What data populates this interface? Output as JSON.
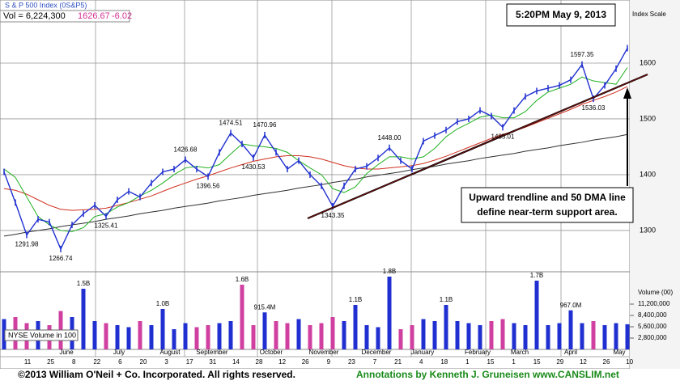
{
  "chart_data": {
    "type": "stock",
    "title": "S & P 500 Index (0S&P5)",
    "volume_text": "Vol = 6,224,300",
    "last_price": "1626.67",
    "change": "-6.02",
    "timestamp": "5:20PM May 9, 2013",
    "axis_label": "Index Scale",
    "volume_axis_label": "Volume (00)",
    "volume_legend": "NYSE Volume in 100",
    "callout": [
      "Upward trendline and 50 DMA line",
      "define near-term support area."
    ],
    "footer_left": "©2013 William O'Neil + Co. Incorporated. All rights reserved.",
    "footer_right": "Annotations by Kenneth J. Gruneisen www.CANSLIM.net",
    "date_ticks": [
      "11",
      "25",
      "8",
      "22",
      "6",
      "20",
      "3",
      "17",
      "31",
      "14",
      "28",
      "12",
      "26",
      "9",
      "23",
      "7",
      "21",
      "4",
      "18",
      "1",
      "15",
      "1",
      "15",
      "29",
      "12",
      "26",
      "10"
    ],
    "months": [
      "June",
      "July",
      "August",
      "September",
      "October",
      "November",
      "December",
      "January",
      "February",
      "March",
      "April",
      "May"
    ],
    "ylim": [
      1226,
      1713
    ],
    "yticks": [
      1300,
      1400,
      1500,
      1600
    ],
    "y2lim": [
      0,
      19200000
    ],
    "y2ticks": [
      {
        "value": 2800000,
        "label": "2,800,000"
      },
      {
        "value": 5600000,
        "label": "5,600,000"
      },
      {
        "value": 8400000,
        "label": "8,400,000"
      },
      {
        "value": 11200000,
        "label": "11,200,000"
      }
    ],
    "up_color": "#2030d0",
    "down_color": "#d040a0",
    "series": [
      {
        "name": "S&P 500",
        "color": "#2030d0",
        "values": [
          1405,
          1350,
          1291.98,
          1320,
          1315,
          1266.74,
          1310,
          1330,
          1345,
          1325.41,
          1355,
          1370,
          1360,
          1385,
          1405,
          1410,
          1426.68,
          1410,
          1396.56,
          1440,
          1474.51,
          1455,
          1430.53,
          1470.96,
          1440,
          1410,
          1425,
          1400,
          1380,
          1343.35,
          1380,
          1410,
          1415,
          1430,
          1448,
          1425,
          1410,
          1460,
          1470,
          1480,
          1495,
          1500,
          1515,
          1505,
          1485.01,
          1515,
          1540,
          1550,
          1555,
          1560,
          1570,
          1597.35,
          1536.03,
          1560,
          1590,
          1626.67
        ],
        "value_labels": [
          null,
          null,
          "1291.98",
          null,
          null,
          "1266.74",
          null,
          null,
          null,
          "1325.41",
          null,
          null,
          null,
          null,
          null,
          null,
          "1426.68",
          null,
          "1396.56",
          null,
          "1474.51",
          null,
          "1430.53",
          "1470.96",
          null,
          null,
          null,
          null,
          null,
          "1343.35",
          null,
          null,
          null,
          null,
          "1448.00",
          null,
          null,
          null,
          null,
          null,
          null,
          null,
          null,
          null,
          "1485.01",
          null,
          null,
          null,
          null,
          null,
          null,
          "1597.35",
          "1536.03",
          null,
          null,
          null
        ]
      },
      {
        "name": "10-day",
        "color": "#20b020",
        "values": [
          1410,
          1395,
          1360,
          1325,
          1310,
          1300,
          1298,
          1305,
          1325,
          1330,
          1342,
          1350,
          1362,
          1372,
          1385,
          1400,
          1412,
          1415,
          1412,
          1418,
          1437,
          1455,
          1452,
          1450,
          1447,
          1440,
          1425,
          1412,
          1400,
          1375,
          1368,
          1378,
          1402,
          1418,
          1432,
          1432,
          1428,
          1432,
          1447,
          1468,
          1482,
          1492,
          1503,
          1507,
          1502,
          1502,
          1513,
          1533,
          1548,
          1555,
          1562,
          1575,
          1568,
          1565,
          1562,
          1592
        ]
      },
      {
        "name": "50-day",
        "color": "#d03020",
        "values": [
          1375,
          1372,
          1365,
          1355,
          1345,
          1338,
          1336,
          1337,
          1338,
          1340,
          1345,
          1350,
          1356,
          1362,
          1370,
          1378,
          1385,
          1392,
          1398,
          1405,
          1412,
          1418,
          1424,
          1428,
          1432,
          1434,
          1434,
          1432,
          1428,
          1422,
          1416,
          1412,
          1410,
          1410,
          1412,
          1414,
          1416,
          1420,
          1426,
          1433,
          1441,
          1449,
          1457,
          1465,
          1472,
          1478,
          1485,
          1493,
          1501,
          1509,
          1517,
          1526,
          1533,
          1540,
          1548,
          1558
        ]
      },
      {
        "name": "200-day",
        "color": "#303030",
        "values": [
          1290,
          1293,
          1297,
          1300,
          1303,
          1307,
          1310,
          1313,
          1316,
          1320,
          1323,
          1326,
          1330,
          1333,
          1336,
          1340,
          1343,
          1346,
          1349,
          1353,
          1356,
          1359,
          1363,
          1366,
          1369,
          1372,
          1376,
          1379,
          1382,
          1386,
          1389,
          1392,
          1396,
          1399,
          1402,
          1405,
          1409,
          1412,
          1415,
          1419,
          1422,
          1425,
          1429,
          1432,
          1435,
          1438,
          1442,
          1445,
          1448,
          1452,
          1455,
          1458,
          1462,
          1465,
          1468,
          1472
        ]
      },
      {
        "name": "Volume",
        "axis": "y2",
        "values": [
          7500000,
          8000000,
          6500000,
          7000000,
          6000000,
          9500000,
          8000000,
          15000000,
          7000000,
          6500000,
          6000000,
          5500000,
          7000000,
          6000000,
          10000000,
          5000000,
          6500000,
          5500000,
          6000000,
          6500000,
          7000000,
          16000000,
          6000000,
          9154000,
          7000000,
          6500000,
          7500000,
          6000000,
          6500000,
          8000000,
          7000000,
          11000000,
          6000000,
          5500000,
          18000000,
          5000000,
          6000000,
          7500000,
          7000000,
          11000000,
          7000000,
          6500000,
          6000000,
          7000000,
          7500000,
          6500000,
          6000000,
          17000000,
          6000000,
          6500000,
          9670000,
          6500000,
          7000000,
          6000000,
          6500000,
          6224300
        ],
        "value_labels": [
          null,
          null,
          null,
          null,
          null,
          null,
          null,
          "1.5B",
          null,
          null,
          null,
          null,
          null,
          null,
          "1.0B",
          null,
          null,
          null,
          null,
          null,
          null,
          "1.6B",
          null,
          "915.4M",
          null,
          null,
          null,
          null,
          null,
          null,
          null,
          "1.1B",
          null,
          null,
          "1.8B",
          null,
          null,
          null,
          null,
          "1.1B",
          null,
          null,
          null,
          null,
          null,
          null,
          null,
          "1.7B",
          null,
          null,
          "967.0M",
          null,
          null,
          null,
          null,
          null
        ]
      }
    ]
  }
}
